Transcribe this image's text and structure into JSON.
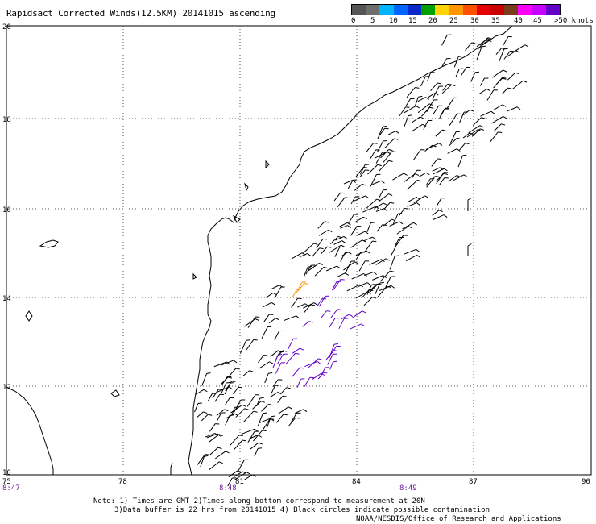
{
  "title": "Rapidsact Corrected Winds(12.5KM) 20141015 ascending",
  "legend": {
    "colors": [
      "#555555",
      "#6e6e6e",
      "#00b4ff",
      "#0064ff",
      "#0a28c8",
      "#00a000",
      "#ffd200",
      "#ff9600",
      "#ff5000",
      "#e60000",
      "#c80000",
      "#7a3c1e",
      "#ff00ff",
      "#c800ff",
      "#6400c8"
    ],
    "labels": [
      "0",
      "5",
      "10",
      "15",
      "20",
      "25",
      "30",
      "35",
      "40",
      "45",
      ">50 knots"
    ]
  },
  "axes": {
    "lon_ticks": [
      "75",
      "78",
      "81",
      "84",
      "87",
      "90"
    ],
    "lat_ticks": [
      "20",
      "18",
      "16",
      "14",
      "12",
      "10"
    ],
    "time_labels": [
      "8:47",
      "8:48",
      "8:49"
    ]
  },
  "notes": {
    "line1": "Note: 1) Times are GMT 2)Times along bottom correspond to measurement at 20N",
    "line2": "3)Data buffer is 22 hrs from 20141015 4) Black circles indicate possible contamination",
    "credit": "NOAA/NESDIS/Office of Research and Applications"
  }
}
